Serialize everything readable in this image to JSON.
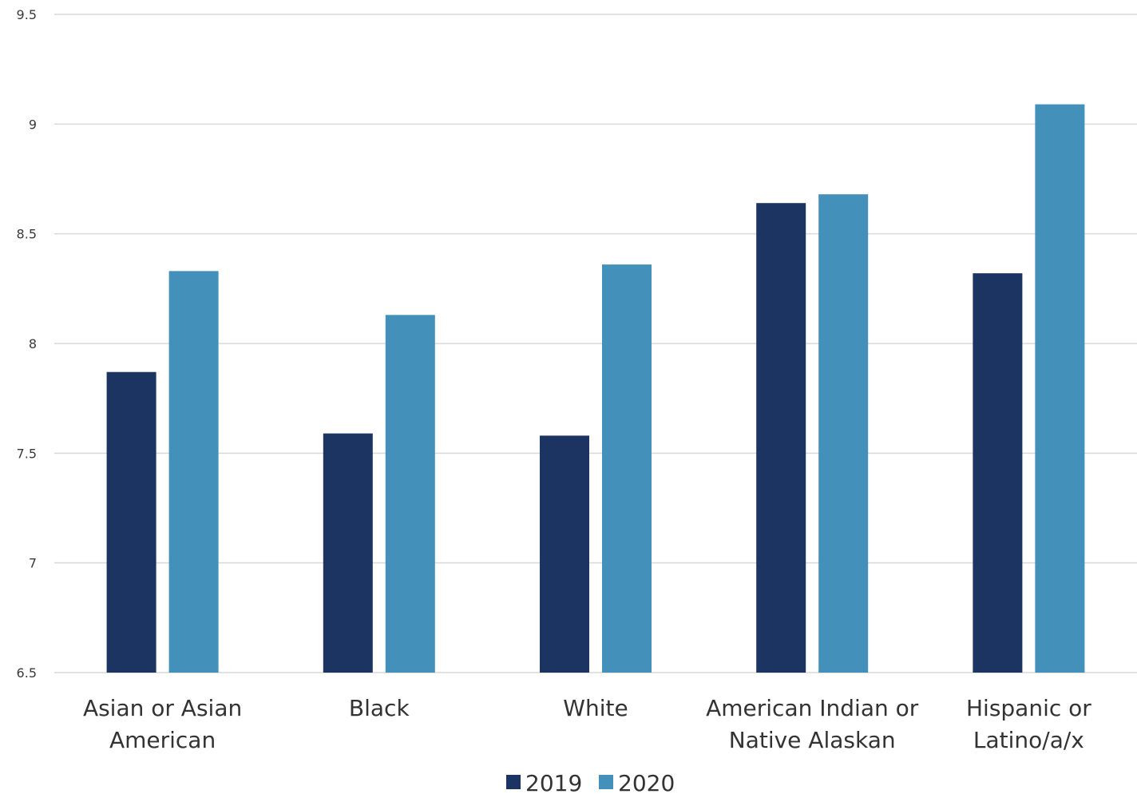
{
  "chart_data": {
    "type": "bar",
    "categories": [
      [
        "Asian or Asian",
        "American"
      ],
      [
        "Black"
      ],
      [
        "White"
      ],
      [
        "American Indian or",
        "Native Alaskan"
      ],
      [
        "Hispanic or",
        "Latino/a/x"
      ]
    ],
    "series": [
      {
        "name": "2019",
        "color": "#1b3461",
        "values": [
          7.87,
          7.59,
          7.58,
          8.64,
          8.32
        ]
      },
      {
        "name": "2020",
        "color": "#4390bb",
        "values": [
          8.33,
          8.13,
          8.36,
          8.68,
          9.09
        ]
      }
    ],
    "yticks": [
      "6.5",
      "7",
      "7.5",
      "8",
      "8.5",
      "9",
      "9.5"
    ],
    "ylim": [
      6.5,
      9.5
    ],
    "grid": true,
    "legend": "bottom-center"
  }
}
